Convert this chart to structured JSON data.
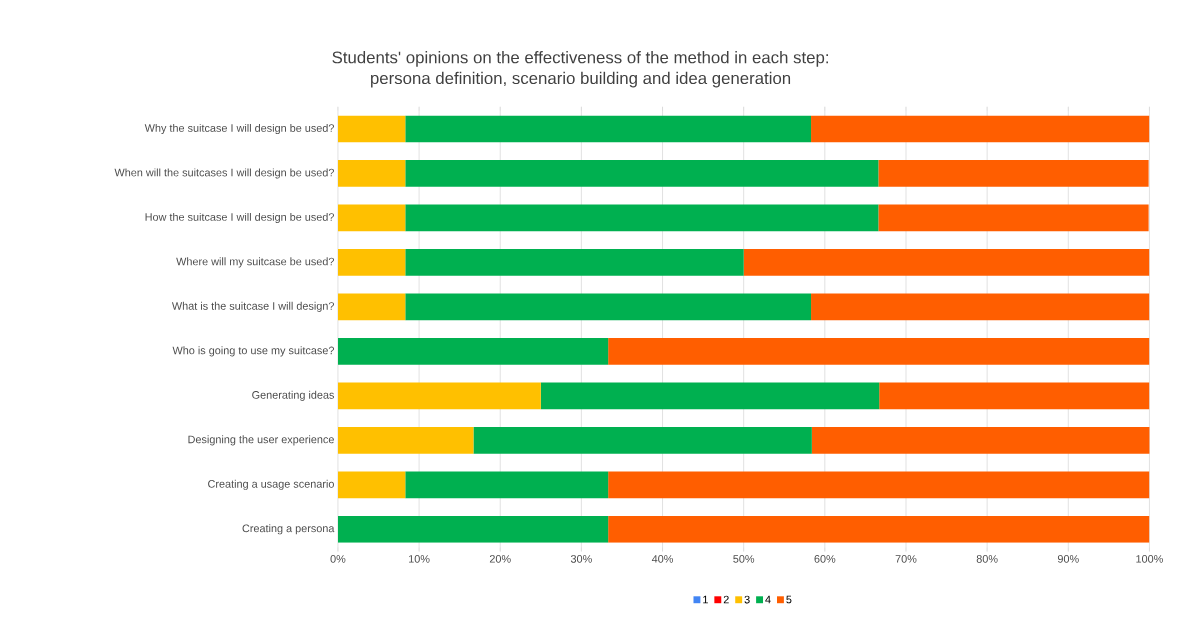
{
  "chart_data": {
    "type": "bar",
    "orientation": "horizontal",
    "stacked": true,
    "title": "Students' opinions on the effectiveness of the method in each step:",
    "subtitle": "persona definition, scenario building and idea generation",
    "categories": [
      "Why the suitcase I will design be used?",
      "When will the suitcases I will design be used?",
      "How the suitcase I will design be used?",
      "Where will my suitcase be used?",
      "What is the suitcase I will design?",
      "Who is going to use my suitcase?",
      "Generating ideas",
      "Designing the user experience",
      "Creating a usage scenario",
      "Creating a persona"
    ],
    "series": [
      {
        "name": "1",
        "color": "#4285f4",
        "values": [
          0,
          0,
          0,
          0,
          0,
          0,
          0,
          0,
          0,
          0
        ]
      },
      {
        "name": "2",
        "color": "#ff0000",
        "values": [
          0,
          0,
          0,
          0,
          0,
          0,
          0,
          0,
          0,
          0
        ]
      },
      {
        "name": "3",
        "color": "#ffc000",
        "values": [
          8.3,
          8.3,
          8.3,
          8.3,
          8.3,
          0,
          25,
          16.7,
          8.3,
          0
        ]
      },
      {
        "name": "4",
        "color": "#00b050",
        "values": [
          50,
          58.3,
          58.3,
          41.7,
          50,
          33.3,
          41.7,
          41.7,
          25,
          33.3
        ]
      },
      {
        "name": "5",
        "color": "#ff5e00",
        "values": [
          41.7,
          33.3,
          33.3,
          50,
          41.7,
          66.7,
          33.3,
          41.7,
          66.7,
          66.7
        ]
      }
    ],
    "xlim": [
      0,
      100
    ],
    "xticks": [
      {
        "value": 0,
        "label": "0%"
      },
      {
        "value": 10,
        "label": "10%"
      },
      {
        "value": 20,
        "label": "20%"
      },
      {
        "value": 30,
        "label": "30%"
      },
      {
        "value": 40,
        "label": "40%"
      },
      {
        "value": 50,
        "label": "50%"
      },
      {
        "value": 60,
        "label": "60%"
      },
      {
        "value": 70,
        "label": "70%"
      },
      {
        "value": 80,
        "label": "80%"
      },
      {
        "value": 90,
        "label": "90%"
      },
      {
        "value": 100,
        "label": "100%"
      }
    ],
    "grid": "x",
    "legend": "bottom"
  }
}
